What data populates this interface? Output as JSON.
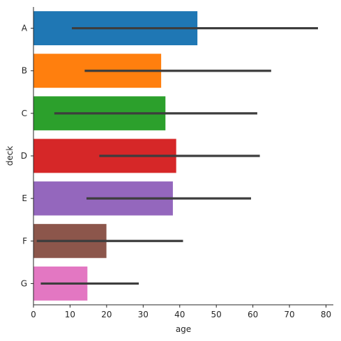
{
  "chart_data": {
    "type": "bar",
    "orientation": "horizontal",
    "categories": [
      "A",
      "B",
      "C",
      "D",
      "E",
      "F",
      "G"
    ],
    "values": [
      44.83,
      34.92,
      36.09,
      39.03,
      38.12,
      19.95,
      14.75
    ],
    "ci_low": [
      10.5,
      14.0,
      5.7,
      18.0,
      14.5,
      0.9,
      2.0
    ],
    "ci_high": [
      77.8,
      65.0,
      61.2,
      61.9,
      59.5,
      40.9,
      28.8
    ],
    "colors": [
      "#1f77b4",
      "#ff7f0e",
      "#2ca02c",
      "#d62728",
      "#9467bd",
      "#8c564b",
      "#e377c2"
    ],
    "errorbar_color": "#3d3d3d",
    "title": "",
    "xlabel": "age",
    "ylabel": "deck",
    "xlim": [
      0,
      82
    ],
    "xticks": [
      0,
      10,
      20,
      30,
      40,
      50,
      60,
      70,
      80
    ],
    "grid": false,
    "legend": "none"
  }
}
